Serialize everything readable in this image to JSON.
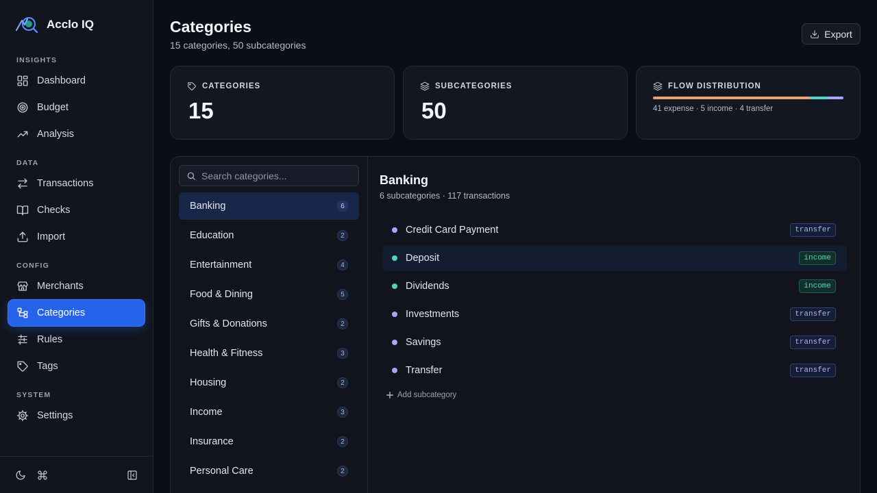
{
  "brand": {
    "name": "Acclo IQ"
  },
  "sidebar": {
    "sections": [
      {
        "label": "INSIGHTS",
        "items": [
          {
            "label": "Dashboard",
            "icon": "dashboard-icon"
          },
          {
            "label": "Budget",
            "icon": "target-icon"
          },
          {
            "label": "Analysis",
            "icon": "trend-icon"
          }
        ]
      },
      {
        "label": "DATA",
        "items": [
          {
            "label": "Transactions",
            "icon": "swap-icon"
          },
          {
            "label": "Checks",
            "icon": "book-icon"
          },
          {
            "label": "Import",
            "icon": "upload-icon"
          }
        ]
      },
      {
        "label": "CONFIG",
        "items": [
          {
            "label": "Merchants",
            "icon": "store-icon"
          },
          {
            "label": "Categories",
            "icon": "tree-icon",
            "active": true
          },
          {
            "label": "Rules",
            "icon": "sliders-icon"
          },
          {
            "label": "Tags",
            "icon": "tag-icon"
          }
        ]
      },
      {
        "label": "SYSTEM",
        "items": [
          {
            "label": "Settings",
            "icon": "gear-icon"
          }
        ]
      }
    ]
  },
  "header": {
    "title": "Categories",
    "subtitle": "15 categories, 50 subcategories",
    "export_label": "Export"
  },
  "stats": {
    "categories": {
      "label": "CATEGORIES",
      "value": "15"
    },
    "subcategories": {
      "label": "SUBCATEGORIES",
      "value": "50"
    },
    "flow": {
      "label": "FLOW DISTRIBUTION",
      "summary": "41 expense · 5 income · 4 transfer",
      "segments": [
        {
          "name": "expense",
          "count": 41,
          "color": "#f0a070"
        },
        {
          "name": "income",
          "count": 5,
          "color": "#4fd1c5"
        },
        {
          "name": "transfer",
          "count": 4,
          "color": "#a5a8f5"
        }
      ]
    }
  },
  "category_list": {
    "search_placeholder": "Search categories...",
    "items": [
      {
        "label": "Banking",
        "count": "6",
        "selected": true
      },
      {
        "label": "Education",
        "count": "2"
      },
      {
        "label": "Entertainment",
        "count": "4"
      },
      {
        "label": "Food & Dining",
        "count": "5"
      },
      {
        "label": "Gifts & Donations",
        "count": "2"
      },
      {
        "label": "Health & Fitness",
        "count": "3"
      },
      {
        "label": "Housing",
        "count": "2"
      },
      {
        "label": "Income",
        "count": "3"
      },
      {
        "label": "Insurance",
        "count": "2"
      },
      {
        "label": "Personal Care",
        "count": "2"
      }
    ]
  },
  "detail": {
    "title": "Banking",
    "subtitle": "6 subcategories · 117 transactions",
    "subcategories": [
      {
        "label": "Credit Card Payment",
        "type": "transfer"
      },
      {
        "label": "Deposit",
        "type": "income",
        "hover": true
      },
      {
        "label": "Dividends",
        "type": "income"
      },
      {
        "label": "Investments",
        "type": "transfer"
      },
      {
        "label": "Savings",
        "type": "transfer"
      },
      {
        "label": "Transfer",
        "type": "transfer"
      }
    ],
    "add_label": "Add subcategory"
  },
  "colors": {
    "accent": "#2563eb",
    "income": "#4fd1c5",
    "transfer": "#a5a8f5"
  }
}
